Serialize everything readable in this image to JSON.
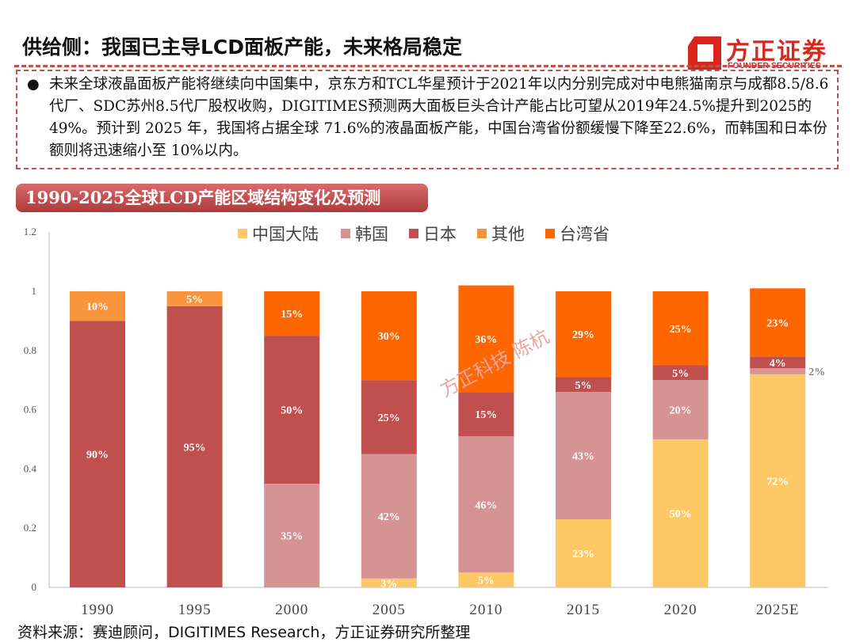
{
  "header": {
    "title": "供给侧：我国已主导LCD面板产能，未来格局稳定",
    "logo_cn": "方正证券",
    "logo_en": "FOUNDER SECURITIES"
  },
  "summary": {
    "bullet": "●",
    "text": "未来全球液晶面板产能将继续向中国集中，京东方和TCL华星预计于2021年以内分别完成对中电熊猫南京与成都8.5/8.6代厂、SDC苏州8.5代厂股权收购，DIGITIMES预测两大面板巨头合计产能占比可望从2019年24.5%提升到2025的49%。预计到 2025 年，我国将占据全球 71.6%的液晶面板产能，中国台湾省份额缓慢下降至22.6%，而韩国和日本份额则将迅速缩小至 10%以内。"
  },
  "chart_banner": "1990-2025全球LCD产能区域结构变化及预测",
  "watermark": "方正科技 陈杭",
  "footer": "资料来源：赛迪顾问，DIGITIMES Research，方正证券研究所整理",
  "chart_data": {
    "type": "stacked-bar",
    "title": "1990-2025全球LCD产能区域结构变化及预测",
    "categories": [
      "1990",
      "1995",
      "2000",
      "2005",
      "2010",
      "2015",
      "2020",
      "2025E"
    ],
    "ylim": [
      0,
      1.2
    ],
    "yticks": [
      "0",
      "0.2",
      "0.4",
      "0.6",
      "0.8",
      "1",
      "1.2"
    ],
    "legend_position": "top",
    "grid": false,
    "series": [
      {
        "name": "中国大陆",
        "color": "#FFC866",
        "values": [
          0,
          0,
          0,
          0.03,
          0.05,
          0.23,
          0.5,
          0.72
        ],
        "labels": [
          "",
          "",
          "",
          "3%",
          "5%",
          "23%",
          "50%",
          "72%"
        ]
      },
      {
        "name": "韩国",
        "color": "#D59393",
        "values": [
          0,
          0,
          0.35,
          0.42,
          0.46,
          0.43,
          0.2,
          0.02
        ],
        "labels": [
          "",
          "",
          "35%",
          "42%",
          "46%",
          "43%",
          "20%",
          "2%"
        ]
      },
      {
        "name": "日本",
        "color": "#C0504D",
        "values": [
          0.9,
          0.95,
          0.5,
          0.25,
          0.15,
          0.05,
          0.05,
          0.04
        ],
        "labels": [
          "90%",
          "95%",
          "50%",
          "25%",
          "15%",
          "5%",
          "5%",
          "4%"
        ]
      },
      {
        "name": "其他",
        "color": "#F9963C",
        "values": [
          0.1,
          0.05,
          0,
          0,
          0,
          0,
          0,
          0
        ],
        "labels": [
          "10%",
          "5%",
          "",
          "",
          "",
          "",
          "",
          ""
        ]
      },
      {
        "name": "台湾省",
        "color": "#FF6600",
        "values": [
          0,
          0,
          0.15,
          0.3,
          0.36,
          0.29,
          0.25,
          0.23
        ],
        "labels": [
          "",
          "",
          "15%",
          "30%",
          "36%",
          "29%",
          "25%",
          "23%"
        ]
      }
    ]
  }
}
